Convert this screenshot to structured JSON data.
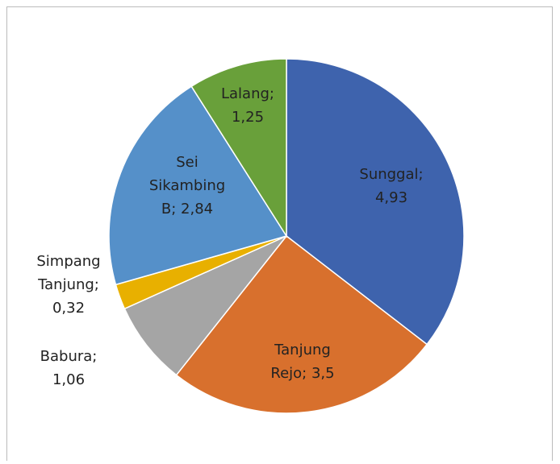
{
  "chart_data": {
    "type": "pie",
    "values": [
      4.93,
      3.5,
      1.06,
      0.32,
      2.84,
      1.25
    ],
    "value_labels": [
      "Sunggal;\n4,93",
      "Tanjung\nRejo; 3,5",
      "Babura;\n1,06",
      "Simpang\nTanjung;\n0,32",
      "Sei\nSikambing\nB; 2,84",
      "Lalang;\n1,25"
    ],
    "colors": [
      "#3e63ad",
      "#d8702d",
      "#a5a5a5",
      "#e8b000",
      "#5590c9",
      "#69a03a"
    ]
  }
}
